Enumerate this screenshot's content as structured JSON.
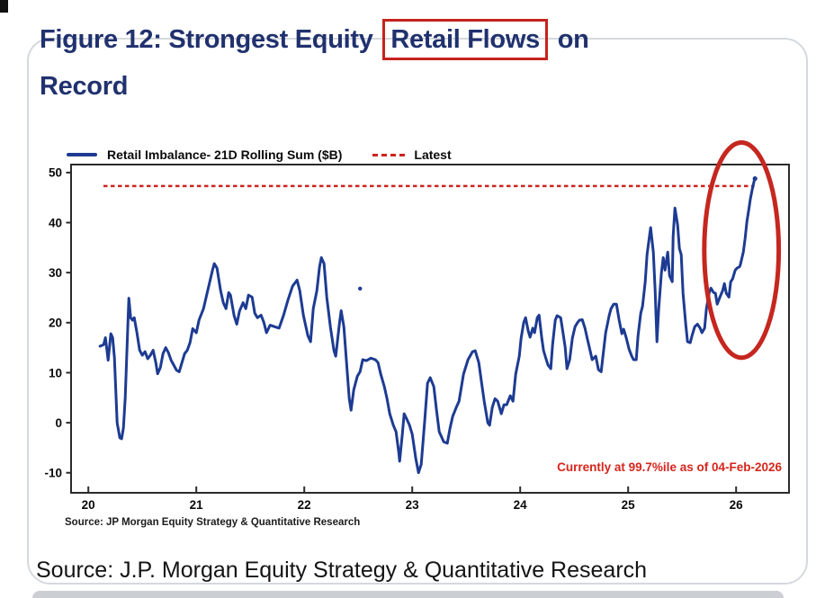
{
  "title": {
    "prefix": "Figure 12: Strongest Equity",
    "highlight": "Retail Flows",
    "suffix": "on",
    "line2": "Record",
    "color": "#20316e",
    "box_color": "#c5231d"
  },
  "chart": {
    "annotation": "Currently at 99.7%ile as of 04-Feb-2026",
    "inner_source": "Source: JP Morgan Equity Strategy & Quantitative Research"
  },
  "source_line": "Source: J.P. Morgan Equity Strategy & Quantitative Research",
  "chart_data": {
    "type": "line",
    "title": "",
    "xlabel": "",
    "ylabel": "",
    "x_ticks": [
      20,
      21,
      22,
      23,
      24,
      25,
      26
    ],
    "y_ticks": [
      50,
      40,
      30,
      20,
      10,
      0,
      -10
    ],
    "xlim": [
      19.84,
      26.49
    ],
    "ylim": [
      -14.0,
      51.6
    ],
    "grid": false,
    "legend_position": "top-left",
    "latest_label": "Latest",
    "latest_value": 47.3,
    "latest_span": [
      20.14,
      26.17
    ],
    "latest_color": "#cc2420",
    "annotation_color": "#d6251c",
    "highlight_ellipse": {
      "cx": 26.05,
      "cy": 34.5,
      "rx": 0.345,
      "ry": 21.5,
      "color": "#c5271f"
    },
    "stray_dot": [
      22.517,
      26.8
    ],
    "series": [
      {
        "name": "Retail Imbalance- 21D Rolling Sum ($B)",
        "color": "#1d3b92",
        "points": [
          [
            20.108,
            15.3
          ],
          [
            20.142,
            15.6
          ],
          [
            20.158,
            17.0
          ],
          [
            20.183,
            12.5
          ],
          [
            20.208,
            17.8
          ],
          [
            20.225,
            17.0
          ],
          [
            20.242,
            13.0
          ],
          [
            20.267,
            0.0
          ],
          [
            20.292,
            -3.0
          ],
          [
            20.308,
            -3.2
          ],
          [
            20.325,
            -1.0
          ],
          [
            20.342,
            5.0
          ],
          [
            20.358,
            15.0
          ],
          [
            20.375,
            24.9
          ],
          [
            20.392,
            21.0
          ],
          [
            20.408,
            20.5
          ],
          [
            20.425,
            21.0
          ],
          [
            20.45,
            18.0
          ],
          [
            20.475,
            14.5
          ],
          [
            20.5,
            13.5
          ],
          [
            20.525,
            14.2
          ],
          [
            20.55,
            12.8
          ],
          [
            20.575,
            13.5
          ],
          [
            20.6,
            14.5
          ],
          [
            20.625,
            12.0
          ],
          [
            20.642,
            9.8
          ],
          [
            20.667,
            11.0
          ],
          [
            20.692,
            13.8
          ],
          [
            20.717,
            15.0
          ],
          [
            20.742,
            14.0
          ],
          [
            20.767,
            12.5
          ],
          [
            20.792,
            11.5
          ],
          [
            20.817,
            10.5
          ],
          [
            20.842,
            10.2
          ],
          [
            20.867,
            12.0
          ],
          [
            20.892,
            13.8
          ],
          [
            20.917,
            14.5
          ],
          [
            20.942,
            16.0
          ],
          [
            20.967,
            18.8
          ],
          [
            21.0,
            18.0
          ],
          [
            21.025,
            20.5
          ],
          [
            21.067,
            22.8
          ],
          [
            21.1,
            25.9
          ],
          [
            21.125,
            28.2
          ],
          [
            21.15,
            30.5
          ],
          [
            21.167,
            31.8
          ],
          [
            21.192,
            30.9
          ],
          [
            21.225,
            26.4
          ],
          [
            21.25,
            24.0
          ],
          [
            21.275,
            22.8
          ],
          [
            21.3,
            26.0
          ],
          [
            21.317,
            25.5
          ],
          [
            21.35,
            21.4
          ],
          [
            21.375,
            19.7
          ],
          [
            21.4,
            22.3
          ],
          [
            21.433,
            24.0
          ],
          [
            21.458,
            22.8
          ],
          [
            21.483,
            25.5
          ],
          [
            21.517,
            25.1
          ],
          [
            21.542,
            21.9
          ],
          [
            21.567,
            21.0
          ],
          [
            21.6,
            21.5
          ],
          [
            21.625,
            20.1
          ],
          [
            21.65,
            18.0
          ],
          [
            21.683,
            19.5
          ],
          [
            21.725,
            19.2
          ],
          [
            21.767,
            18.9
          ],
          [
            21.808,
            21.5
          ],
          [
            21.85,
            24.6
          ],
          [
            21.892,
            27.3
          ],
          [
            21.933,
            28.5
          ],
          [
            21.958,
            26.4
          ],
          [
            21.992,
            21.5
          ],
          [
            22.033,
            17.4
          ],
          [
            22.058,
            16.2
          ],
          [
            22.083,
            22.8
          ],
          [
            22.117,
            26.4
          ],
          [
            22.142,
            31.2
          ],
          [
            22.158,
            33.0
          ],
          [
            22.183,
            31.8
          ],
          [
            22.208,
            25.1
          ],
          [
            22.242,
            19.2
          ],
          [
            22.275,
            14.4
          ],
          [
            22.292,
            13.3
          ],
          [
            22.325,
            19.7
          ],
          [
            22.342,
            22.4
          ],
          [
            22.367,
            19.2
          ],
          [
            22.392,
            12.0
          ],
          [
            22.417,
            4.8
          ],
          [
            22.433,
            2.5
          ],
          [
            22.458,
            6.6
          ],
          [
            22.492,
            9.3
          ],
          [
            22.517,
            10.2
          ],
          [
            22.542,
            12.6
          ],
          [
            22.575,
            12.4
          ],
          [
            22.617,
            12.9
          ],
          [
            22.658,
            12.6
          ],
          [
            22.683,
            12.0
          ],
          [
            22.708,
            9.7
          ],
          [
            22.742,
            7.2
          ],
          [
            22.767,
            4.8
          ],
          [
            22.792,
            1.8
          ],
          [
            22.825,
            -0.5
          ],
          [
            22.85,
            -1.8
          ],
          [
            22.875,
            -5.9
          ],
          [
            22.883,
            -7.7
          ],
          [
            22.908,
            -2.3
          ],
          [
            22.925,
            1.8
          ],
          [
            22.95,
            0.7
          ],
          [
            22.975,
            -0.5
          ],
          [
            23.0,
            -2.3
          ],
          [
            23.033,
            -7.2
          ],
          [
            23.058,
            -10.0
          ],
          [
            23.083,
            -8.3
          ],
          [
            23.117,
            0.7
          ],
          [
            23.142,
            7.9
          ],
          [
            23.167,
            9.0
          ],
          [
            23.2,
            7.2
          ],
          [
            23.225,
            2.5
          ],
          [
            23.25,
            -1.8
          ],
          [
            23.292,
            -3.8
          ],
          [
            23.325,
            -4.1
          ],
          [
            23.35,
            -1.1
          ],
          [
            23.375,
            1.3
          ],
          [
            23.408,
            3.1
          ],
          [
            23.433,
            4.3
          ],
          [
            23.475,
            9.7
          ],
          [
            23.517,
            12.6
          ],
          [
            23.558,
            14.2
          ],
          [
            23.583,
            14.4
          ],
          [
            23.617,
            12.0
          ],
          [
            23.642,
            8.1
          ],
          [
            23.667,
            4.3
          ],
          [
            23.7,
            0.0
          ],
          [
            23.717,
            -0.5
          ],
          [
            23.742,
            3.1
          ],
          [
            23.767,
            4.8
          ],
          [
            23.792,
            4.3
          ],
          [
            23.825,
            1.8
          ],
          [
            23.85,
            3.6
          ],
          [
            23.875,
            3.6
          ],
          [
            23.908,
            5.4
          ],
          [
            23.933,
            4.3
          ],
          [
            23.958,
            9.7
          ],
          [
            23.992,
            13.3
          ],
          [
            24.008,
            16.9
          ],
          [
            24.033,
            20.1
          ],
          [
            24.05,
            21.0
          ],
          [
            24.075,
            18.3
          ],
          [
            24.092,
            17.1
          ],
          [
            24.117,
            18.9
          ],
          [
            24.133,
            18.0
          ],
          [
            24.158,
            21.0
          ],
          [
            24.175,
            21.5
          ],
          [
            24.2,
            16.9
          ],
          [
            24.217,
            14.4
          ],
          [
            24.242,
            12.6
          ],
          [
            24.258,
            11.5
          ],
          [
            24.283,
            10.8
          ],
          [
            24.3,
            15.6
          ],
          [
            24.325,
            20.5
          ],
          [
            24.342,
            21.4
          ],
          [
            24.375,
            21.0
          ],
          [
            24.392,
            18.7
          ],
          [
            24.417,
            15.1
          ],
          [
            24.433,
            10.8
          ],
          [
            24.458,
            12.6
          ],
          [
            24.483,
            16.9
          ],
          [
            24.508,
            19.2
          ],
          [
            24.533,
            20.1
          ],
          [
            24.55,
            20.5
          ],
          [
            24.575,
            20.6
          ],
          [
            24.6,
            18.9
          ],
          [
            24.625,
            16.5
          ],
          [
            24.65,
            14.2
          ],
          [
            24.667,
            12.6
          ],
          [
            24.7,
            13.3
          ],
          [
            24.725,
            10.6
          ],
          [
            24.75,
            10.2
          ],
          [
            24.767,
            13.3
          ],
          [
            24.792,
            18.0
          ],
          [
            24.825,
            21.5
          ],
          [
            24.842,
            22.8
          ],
          [
            24.867,
            23.7
          ],
          [
            24.892,
            23.7
          ],
          [
            24.917,
            20.5
          ],
          [
            24.942,
            17.8
          ],
          [
            24.958,
            18.7
          ],
          [
            24.983,
            16.9
          ],
          [
            25.008,
            14.7
          ],
          [
            25.033,
            13.3
          ],
          [
            25.05,
            12.6
          ],
          [
            25.075,
            12.6
          ],
          [
            25.092,
            17.4
          ],
          [
            25.117,
            21.9
          ],
          [
            25.133,
            23.3
          ],
          [
            25.158,
            28.2
          ],
          [
            25.175,
            33.6
          ],
          [
            25.2,
            37.7
          ],
          [
            25.208,
            39.0
          ],
          [
            25.233,
            34.1
          ],
          [
            25.25,
            26.4
          ],
          [
            25.267,
            16.2
          ],
          [
            25.283,
            22.8
          ],
          [
            25.308,
            30.0
          ],
          [
            25.325,
            33.0
          ],
          [
            25.342,
            30.5
          ],
          [
            25.367,
            34.1
          ],
          [
            25.383,
            29.4
          ],
          [
            25.408,
            28.2
          ],
          [
            25.417,
            37.2
          ],
          [
            25.433,
            42.9
          ],
          [
            25.458,
            39.5
          ],
          [
            25.475,
            34.8
          ],
          [
            25.492,
            33.6
          ],
          [
            25.508,
            25.9
          ],
          [
            25.533,
            19.7
          ],
          [
            25.55,
            16.2
          ],
          [
            25.575,
            16.0
          ],
          [
            25.592,
            17.4
          ],
          [
            25.617,
            19.2
          ],
          [
            25.642,
            19.7
          ],
          [
            25.667,
            18.9
          ],
          [
            25.683,
            18.0
          ],
          [
            25.708,
            18.9
          ],
          [
            25.725,
            22.8
          ],
          [
            25.75,
            25.9
          ],
          [
            25.767,
            26.9
          ],
          [
            25.792,
            26.0
          ],
          [
            25.808,
            25.9
          ],
          [
            25.825,
            23.7
          ],
          [
            25.85,
            25.1
          ],
          [
            25.875,
            26.4
          ],
          [
            25.892,
            27.8
          ],
          [
            25.908,
            25.9
          ],
          [
            25.933,
            25.1
          ],
          [
            25.95,
            28.2
          ],
          [
            25.967,
            28.7
          ],
          [
            25.992,
            30.5
          ],
          [
            26.008,
            30.9
          ],
          [
            26.033,
            31.2
          ],
          [
            26.042,
            31.8
          ],
          [
            26.067,
            34.1
          ],
          [
            26.083,
            36.8
          ],
          [
            26.1,
            40.2
          ],
          [
            26.117,
            42.5
          ],
          [
            26.133,
            44.9
          ],
          [
            26.15,
            46.7
          ],
          [
            26.167,
            48.3
          ],
          [
            26.175,
            48.8
          ]
        ]
      }
    ]
  }
}
